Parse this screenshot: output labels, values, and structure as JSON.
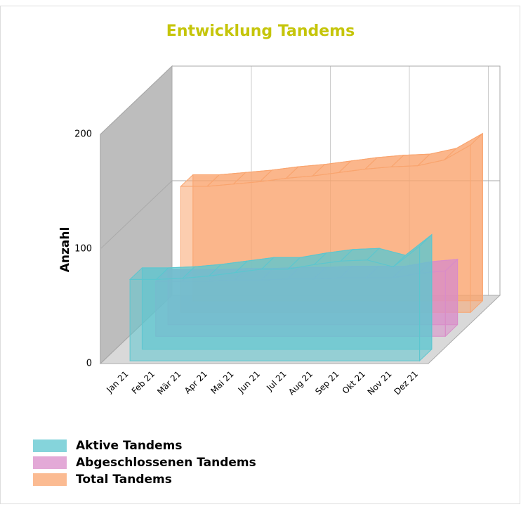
{
  "chart_data": {
    "type": "area3d",
    "title": "Entwicklung Tandems",
    "y_label": "Anzahl",
    "categories": [
      "Jan 21",
      "Feb 21",
      "Mär 21",
      "Apr 21",
      "Mai 21",
      "Jun 21",
      "Jul 21",
      "Aug 21",
      "Sep 21",
      "Okt 21",
      "Nov 21",
      "Dez 21"
    ],
    "series": [
      {
        "name": "Aktive Tandems",
        "color": "#5cc6cf",
        "values": [
          71,
          71,
          72,
          74,
          77,
          80,
          80,
          84,
          87,
          88,
          82,
          100
        ]
      },
      {
        "name": "Abgeschlossenen Tandems",
        "color": "#d98cc9",
        "values": [
          48,
          48,
          48,
          49,
          49,
          50,
          50,
          51,
          51,
          51,
          55,
          57
        ]
      },
      {
        "name": "Total Tandems",
        "color": "#f9a46e",
        "values": [
          110,
          110,
          112,
          114,
          117,
          119,
          122,
          125,
          127,
          128,
          133,
          146
        ]
      }
    ],
    "ylim": [
      0,
      200
    ],
    "yticks": [
      0,
      100,
      200
    ],
    "grid": true,
    "legend": "bottom-left"
  }
}
